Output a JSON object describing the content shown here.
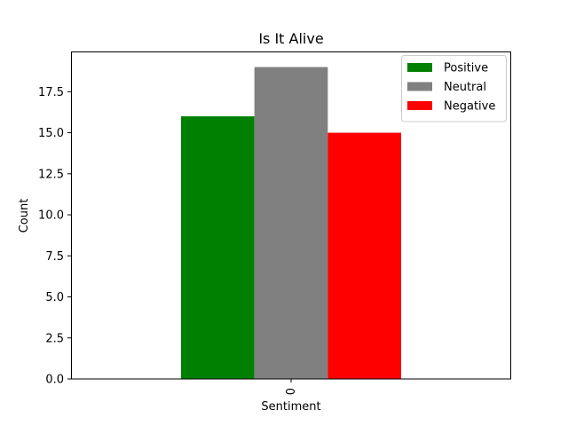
{
  "chart_data": {
    "type": "bar",
    "title": "Is It Alive",
    "xlabel": "Sentiment",
    "ylabel": "Count",
    "categories": [
      "0"
    ],
    "series": [
      {
        "name": "Positive",
        "values": [
          16
        ],
        "color": "#008000"
      },
      {
        "name": "Neutral",
        "values": [
          19
        ],
        "color": "#808080"
      },
      {
        "name": "Negative",
        "values": [
          15
        ],
        "color": "#ff0000"
      }
    ],
    "ylim": [
      0,
      19.95
    ],
    "yticks": [
      0.0,
      2.5,
      5.0,
      7.5,
      10.0,
      12.5,
      15.0,
      17.5
    ],
    "ytick_labels": [
      "0.0",
      "2.5",
      "5.0",
      "7.5",
      "10.0",
      "12.5",
      "15.0",
      "17.5"
    ],
    "xtick_rotation": "vertical",
    "grid": false,
    "legend_position": "top-right"
  }
}
